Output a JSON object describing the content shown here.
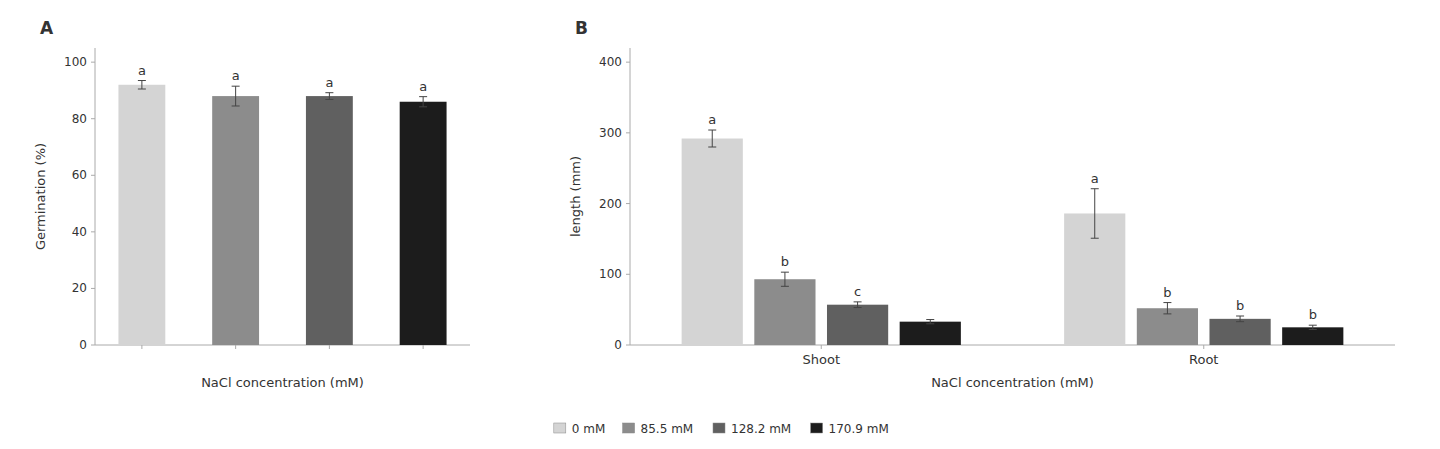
{
  "chart_data": [
    {
      "type": "bar",
      "title": "A",
      "categories": [
        null,
        null,
        null,
        null
      ],
      "values": [
        92,
        88,
        88,
        86
      ],
      "errors": [
        1.5,
        3.5,
        1.2,
        1.8
      ],
      "letters": [
        "a",
        "a",
        "a",
        "a"
      ],
      "colors": [
        "#d4d4d4",
        "#8c8c8c",
        "#606060",
        "#1c1c1c"
      ],
      "ylabel": "Germination (%)",
      "xlabel": "NaCl concentration (mM)",
      "ylim": [
        0,
        105
      ],
      "yticks": [
        0,
        20,
        40,
        60,
        80,
        100
      ],
      "grid": false
    },
    {
      "type": "bar",
      "title": "B",
      "categories": [
        "Shoot",
        "Root"
      ],
      "series": [
        {
          "name": "0 mM",
          "color": "#d4d4d4",
          "values": [
            292,
            186
          ],
          "errors": [
            12,
            35
          ],
          "letters": [
            "a",
            "a"
          ]
        },
        {
          "name": "85.5 mM",
          "color": "#8c8c8c",
          "values": [
            93,
            52
          ],
          "errors": [
            10,
            8
          ],
          "letters": [
            "b",
            "b"
          ]
        },
        {
          "name": "128.2 mM",
          "color": "#606060",
          "values": [
            57,
            37
          ],
          "errors": [
            4,
            4
          ],
          "letters": [
            "c",
            "b"
          ]
        },
        {
          "name": "170.9 mM",
          "color": "#1c1c1c",
          "values": [
            33,
            25
          ],
          "errors": [
            3,
            3
          ],
          "letters": [
            null,
            "b"
          ]
        }
      ],
      "ylabel": "length (mm)",
      "xlabel": "NaCl concentration (mM)",
      "ylim": [
        0,
        420
      ],
      "yticks": [
        0,
        100,
        200,
        300,
        400
      ],
      "grid": false,
      "legend": "bottom"
    }
  ]
}
